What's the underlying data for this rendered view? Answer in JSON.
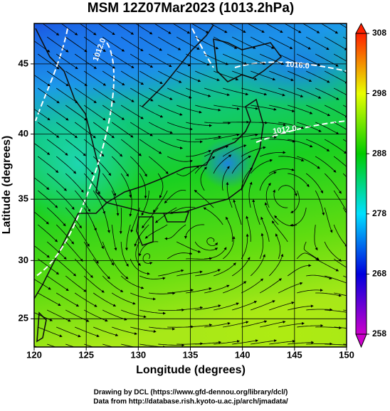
{
  "chart_data": {
    "type": "map",
    "title": "MSM 12Z07Mar2023 (1013.2hPa)",
    "x_label": "Longitude (degrees)",
    "y_label": "Latitude  (degrees)",
    "projection": "mercator",
    "xlim": [
      120,
      150
    ],
    "ylim": [
      22.5,
      47.7
    ],
    "xticks": [
      120,
      125,
      130,
      135,
      140,
      145,
      150
    ],
    "yticks": [
      25,
      30,
      35,
      40,
      45
    ],
    "grid": true,
    "colorbar": {
      "lim": [
        258,
        308
      ],
      "ticks": [
        258,
        268,
        278,
        288,
        298,
        308
      ],
      "colors": [
        "#cc00cc",
        "#0000dd",
        "#00e0ff",
        "#00cc00",
        "#e8ff00",
        "#ff2000"
      ]
    },
    "contour_labels": [
      "1012.0",
      "1016.0",
      "1012.0"
    ],
    "footer": [
      "Drawing by DCL (https://www.gfd-dennou.org/library/dcl/)",
      "Data from http://database.rish.kyoto-u.ac.jp/arch/jmadata/"
    ]
  }
}
